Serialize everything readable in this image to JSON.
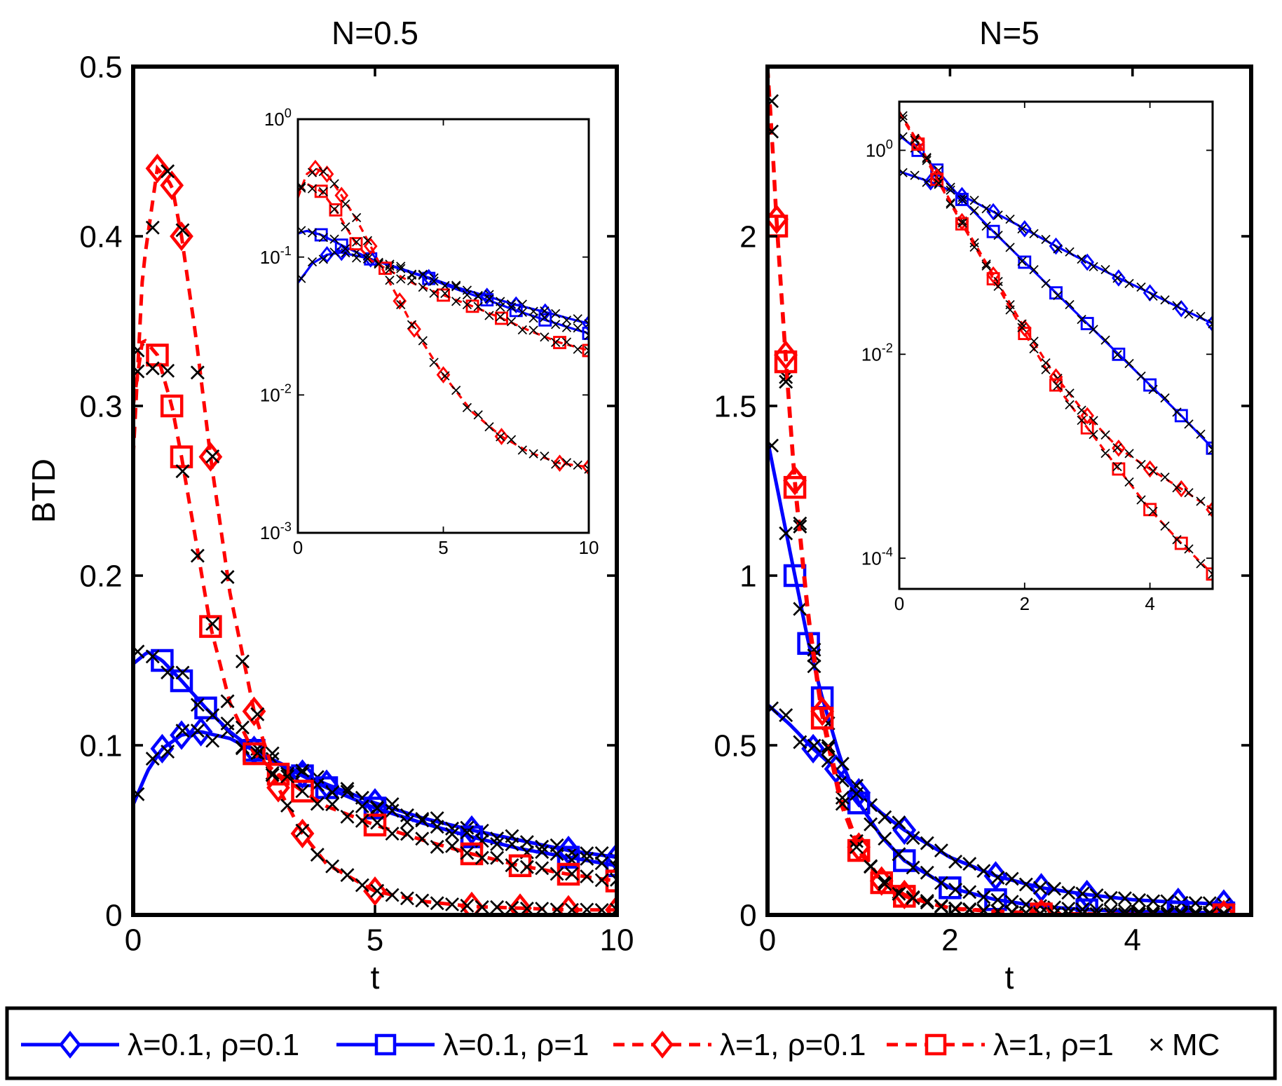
{
  "chart_data": [
    {
      "type": "line",
      "panel": "left-main",
      "title": "N=0.5",
      "xlabel": "t",
      "ylabel": "BTD",
      "xlim": [
        0,
        10
      ],
      "ylim": [
        0,
        0.5
      ],
      "xticks": [
        0,
        5,
        10
      ],
      "yticks": [
        0,
        0.1,
        0.2,
        0.3,
        0.4,
        0.5
      ],
      "xtick_labels": [
        "0",
        "5",
        "10"
      ],
      "ytick_labels": [
        "0",
        "0.1",
        "0.2",
        "0.3",
        "0.4",
        "0.5"
      ],
      "series": [
        {
          "name": "λ=0.1, ρ=0.1",
          "color": "#0000ff",
          "dash": "solid",
          "marker": "diamond",
          "x": [
            0,
            0.3,
            0.6,
            1.0,
            1.4,
            2.0,
            2.5,
            3.0,
            3.5,
            4.0,
            5.0,
            6.0,
            7.0,
            8.0,
            9.0,
            10.0
          ],
          "y": [
            0.065,
            0.085,
            0.098,
            0.106,
            0.108,
            0.104,
            0.097,
            0.09,
            0.083,
            0.077,
            0.066,
            0.057,
            0.05,
            0.044,
            0.038,
            0.034
          ]
        },
        {
          "name": "λ=0.1, ρ=1",
          "color": "#0000ff",
          "dash": "solid",
          "marker": "square",
          "x": [
            0,
            0.3,
            0.6,
            1.0,
            1.5,
            2.0,
            2.5,
            3.0,
            3.5,
            4.0,
            5.0,
            6.0,
            7.0,
            8.0,
            9.0,
            10.0
          ],
          "y": [
            0.148,
            0.155,
            0.15,
            0.138,
            0.122,
            0.108,
            0.097,
            0.089,
            0.082,
            0.075,
            0.063,
            0.054,
            0.046,
            0.039,
            0.034,
            0.029
          ]
        },
        {
          "name": "λ=1, ρ=0.1",
          "color": "#ff0000",
          "dash": "dashed",
          "marker": "diamond",
          "x": [
            0,
            0.2,
            0.5,
            0.8,
            1.0,
            1.3,
            1.6,
            2.0,
            2.5,
            3.0,
            3.5,
            4.0,
            5.0,
            6.0,
            7.0,
            8.0,
            9.0,
            10.0
          ],
          "y": [
            0.27,
            0.38,
            0.44,
            0.43,
            0.4,
            0.34,
            0.27,
            0.19,
            0.12,
            0.075,
            0.048,
            0.03,
            0.014,
            0.008,
            0.005,
            0.004,
            0.003,
            0.003
          ]
        },
        {
          "name": "λ=1, ρ=1",
          "color": "#ff0000",
          "dash": "dashed",
          "marker": "square",
          "x": [
            0,
            0.2,
            0.5,
            0.8,
            1.0,
            1.3,
            1.6,
            2.0,
            2.5,
            3.0,
            3.5,
            4.0,
            5.0,
            6.0,
            7.0,
            8.0,
            9.0,
            10.0
          ],
          "y": [
            0.3,
            0.34,
            0.33,
            0.3,
            0.27,
            0.22,
            0.17,
            0.125,
            0.095,
            0.083,
            0.073,
            0.064,
            0.053,
            0.044,
            0.036,
            0.029,
            0.024,
            0.02
          ]
        }
      ]
    },
    {
      "type": "line",
      "panel": "left-inset",
      "title": "",
      "xlabel": "",
      "ylabel": "",
      "yscale": "log",
      "xlim": [
        0,
        10
      ],
      "ylim": [
        0.001,
        1
      ],
      "xticks": [
        0,
        5,
        10
      ],
      "yticks": [
        0.001,
        0.01,
        0.1,
        1
      ],
      "xtick_labels": [
        "0",
        "5",
        "10"
      ],
      "ytick_labels": [
        {
          "base": "10",
          "exp": "-3"
        },
        {
          "base": "10",
          "exp": "-2"
        },
        {
          "base": "10",
          "exp": "-1"
        },
        {
          "base": "10",
          "exp": "0"
        }
      ],
      "series": [
        {
          "name": "λ=0.1, ρ=0.1",
          "color": "#0000ff",
          "dash": "solid",
          "marker": "diamond",
          "x": [
            0,
            0.5,
            1.0,
            1.5,
            2.5,
            3.5,
            4.5,
            5.5,
            6.5,
            7.5,
            8.5,
            9.5,
            10.0
          ],
          "y": [
            0.065,
            0.09,
            0.104,
            0.108,
            0.097,
            0.083,
            0.071,
            0.06,
            0.052,
            0.045,
            0.04,
            0.035,
            0.033
          ]
        },
        {
          "name": "λ=0.1, ρ=1",
          "color": "#0000ff",
          "dash": "solid",
          "marker": "square",
          "x": [
            0,
            0.3,
            0.8,
            1.5,
            2.5,
            3.5,
            4.5,
            5.5,
            6.5,
            7.5,
            8.5,
            9.5,
            10.0
          ],
          "y": [
            0.148,
            0.155,
            0.145,
            0.122,
            0.097,
            0.082,
            0.07,
            0.058,
            0.049,
            0.041,
            0.035,
            0.03,
            0.028
          ]
        },
        {
          "name": "λ=1, ρ=0.1",
          "color": "#ff0000",
          "dash": "dashed",
          "marker": "diamond",
          "x": [
            0,
            0.3,
            0.6,
            1.0,
            1.5,
            2.0,
            2.5,
            3.0,
            3.5,
            4.0,
            5.0,
            6.0,
            7.0,
            8.0,
            9.0,
            10.0
          ],
          "y": [
            0.27,
            0.4,
            0.44,
            0.4,
            0.28,
            0.19,
            0.12,
            0.075,
            0.048,
            0.03,
            0.014,
            0.0075,
            0.005,
            0.0038,
            0.0032,
            0.003
          ]
        },
        {
          "name": "λ=1, ρ=1",
          "color": "#ff0000",
          "dash": "dashed",
          "marker": "square",
          "x": [
            0,
            0.3,
            0.8,
            1.3,
            2.0,
            2.5,
            3.0,
            4.0,
            5.0,
            6.0,
            7.0,
            8.0,
            9.0,
            10.0
          ],
          "y": [
            0.3,
            0.34,
            0.3,
            0.22,
            0.125,
            0.095,
            0.083,
            0.064,
            0.053,
            0.044,
            0.036,
            0.029,
            0.024,
            0.021
          ]
        }
      ]
    },
    {
      "type": "line",
      "panel": "right-main",
      "title": "N=5",
      "xlabel": "t",
      "ylabel": "",
      "xlim": [
        0,
        5.3
      ],
      "ylim": [
        0,
        2.5
      ],
      "xticks": [
        0,
        2,
        4
      ],
      "yticks": [
        0,
        0.5,
        1,
        1.5,
        2
      ],
      "xtick_labels": [
        "0",
        "2",
        "4"
      ],
      "ytick_labels": [
        "0",
        "0.5",
        "1",
        "1.5",
        "2"
      ],
      "series": [
        {
          "name": "λ=0.1, ρ=0.1",
          "color": "#0000ff",
          "dash": "solid",
          "marker": "diamond",
          "x": [
            0,
            0.25,
            0.5,
            0.75,
            1.0,
            1.25,
            1.5,
            2.0,
            2.5,
            3.0,
            3.5,
            4.0,
            4.5,
            5.0
          ],
          "y": [
            0.62,
            0.56,
            0.49,
            0.43,
            0.36,
            0.3,
            0.25,
            0.17,
            0.115,
            0.08,
            0.06,
            0.045,
            0.037,
            0.032
          ]
        },
        {
          "name": "λ=0.1, ρ=1",
          "color": "#0000ff",
          "dash": "solid",
          "marker": "square",
          "x": [
            0,
            0.15,
            0.3,
            0.45,
            0.6,
            0.8,
            1.0,
            1.25,
            1.5,
            2.0,
            2.5,
            3.0,
            3.5,
            4.0,
            4.5,
            5.0
          ],
          "y": [
            1.4,
            1.2,
            1.0,
            0.8,
            0.64,
            0.46,
            0.33,
            0.23,
            0.16,
            0.08,
            0.045,
            0.025,
            0.015,
            0.01,
            0.008,
            0.006
          ]
        },
        {
          "name": "λ=1, ρ=0.1",
          "color": "#ff0000",
          "dash": "dashed",
          "marker": "diamond",
          "x": [
            0,
            0.05,
            0.1,
            0.2,
            0.3,
            0.45,
            0.6,
            0.8,
            1.0,
            1.25,
            1.5,
            2.0,
            3.0,
            4.0,
            5.0
          ],
          "y": [
            2.5,
            2.3,
            2.05,
            1.65,
            1.28,
            0.88,
            0.6,
            0.35,
            0.2,
            0.1,
            0.06,
            0.02,
            0.004,
            0.002,
            0.001
          ]
        },
        {
          "name": "λ=1, ρ=1",
          "color": "#ff0000",
          "dash": "dashed",
          "marker": "square",
          "x": [
            0,
            0.05,
            0.1,
            0.2,
            0.3,
            0.45,
            0.6,
            0.8,
            1.0,
            1.25,
            1.5,
            2.0,
            3.0,
            4.0,
            5.0
          ],
          "y": [
            2.5,
            2.28,
            2.03,
            1.63,
            1.26,
            0.86,
            0.58,
            0.33,
            0.19,
            0.095,
            0.055,
            0.018,
            0.003,
            0.001,
            0.0005
          ]
        }
      ]
    },
    {
      "type": "line",
      "panel": "right-inset",
      "title": "",
      "xlabel": "",
      "ylabel": "",
      "yscale": "log",
      "xlim": [
        0,
        5
      ],
      "ylim": [
        5e-05,
        3
      ],
      "xticks": [
        0,
        2,
        4
      ],
      "yticks": [
        0.0001,
        0.01,
        1
      ],
      "xtick_labels": [
        "0",
        "2",
        "4"
      ],
      "ytick_labels": [
        {
          "base": "10",
          "exp": "-4"
        },
        {
          "base": "10",
          "exp": "-2"
        },
        {
          "base": "10",
          "exp": "0"
        }
      ],
      "series": [
        {
          "name": "λ=0.1, ρ=0.1",
          "color": "#0000ff",
          "dash": "solid",
          "marker": "diamond",
          "x": [
            0,
            0.5,
            1.0,
            1.5,
            2.0,
            2.5,
            3.0,
            3.5,
            4.0,
            4.5,
            5.0
          ],
          "y": [
            0.62,
            0.49,
            0.36,
            0.25,
            0.17,
            0.115,
            0.08,
            0.056,
            0.04,
            0.028,
            0.02
          ]
        },
        {
          "name": "λ=0.1, ρ=1",
          "color": "#0000ff",
          "dash": "solid",
          "marker": "square",
          "x": [
            0,
            0.3,
            0.6,
            1.0,
            1.5,
            2.0,
            2.5,
            3.0,
            3.5,
            4.0,
            4.5,
            5.0
          ],
          "y": [
            1.4,
            1.0,
            0.64,
            0.33,
            0.16,
            0.08,
            0.04,
            0.02,
            0.01,
            0.005,
            0.0025,
            0.0012
          ]
        },
        {
          "name": "λ=1, ρ=0.1",
          "color": "#ff0000",
          "dash": "dashed",
          "marker": "diamond",
          "x": [
            0,
            0.3,
            0.6,
            1.0,
            1.5,
            2.0,
            2.5,
            3.0,
            3.5,
            4.0,
            4.5,
            5.0
          ],
          "y": [
            2.4,
            1.2,
            0.55,
            0.2,
            0.06,
            0.018,
            0.006,
            0.0025,
            0.0012,
            0.00075,
            0.00048,
            0.0003
          ]
        },
        {
          "name": "λ=1, ρ=1",
          "color": "#ff0000",
          "dash": "dashed",
          "marker": "square",
          "x": [
            0,
            0.3,
            0.6,
            1.0,
            1.5,
            2.0,
            2.5,
            3.0,
            3.5,
            4.0,
            4.5,
            5.0
          ],
          "y": [
            2.3,
            1.15,
            0.52,
            0.19,
            0.055,
            0.016,
            0.005,
            0.0019,
            0.00075,
            0.0003,
            0.00014,
            7e-05
          ]
        }
      ]
    }
  ],
  "legend": {
    "items": [
      {
        "label": "λ=0.1, ρ=0.1",
        "color": "#0000ff",
        "dash": "solid",
        "marker": "diamond"
      },
      {
        "label": "λ=0.1, ρ=1",
        "color": "#0000ff",
        "dash": "solid",
        "marker": "square"
      },
      {
        "label": "λ=1, ρ=0.1",
        "color": "#ff0000",
        "dash": "dashed",
        "marker": "diamond"
      },
      {
        "label": "λ=1, ρ=1",
        "color": "#ff0000",
        "dash": "dashed",
        "marker": "square"
      },
      {
        "label": "MC",
        "color": "#000000",
        "dash": "none",
        "marker": "x"
      }
    ]
  }
}
